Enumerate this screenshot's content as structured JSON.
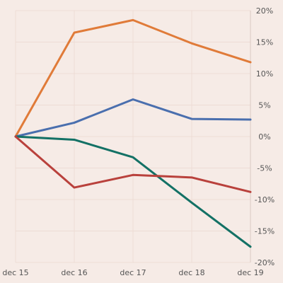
{
  "chart_data": {
    "type": "line",
    "x": [
      "dec 15",
      "dec 16",
      "dec 17",
      "dec 18",
      "dec 19"
    ],
    "ylim": [
      -20,
      20
    ],
    "yticks": [
      20,
      15,
      10,
      5,
      0,
      -5,
      -10,
      -15,
      -20
    ],
    "ytick_labels": [
      "20%",
      "15%",
      "10%",
      "5%",
      "0%",
      "-5%",
      "-10%",
      "-15%",
      "-20%"
    ],
    "grid": true,
    "y_axis_side": "right",
    "legend": false,
    "series": [
      {
        "color": "#e07b39",
        "values": [
          0,
          16.5,
          18.5,
          14.8,
          11.8
        ]
      },
      {
        "color": "#4a6fae",
        "values": [
          0,
          2.2,
          5.9,
          2.8,
          2.7
        ]
      },
      {
        "color": "#137165",
        "values": [
          0,
          -0.5,
          -3.3,
          -10.5,
          -17.5
        ]
      },
      {
        "color": "#b9413c",
        "values": [
          0,
          -8.1,
          -6.1,
          -6.5,
          -8.8
        ]
      }
    ]
  }
}
